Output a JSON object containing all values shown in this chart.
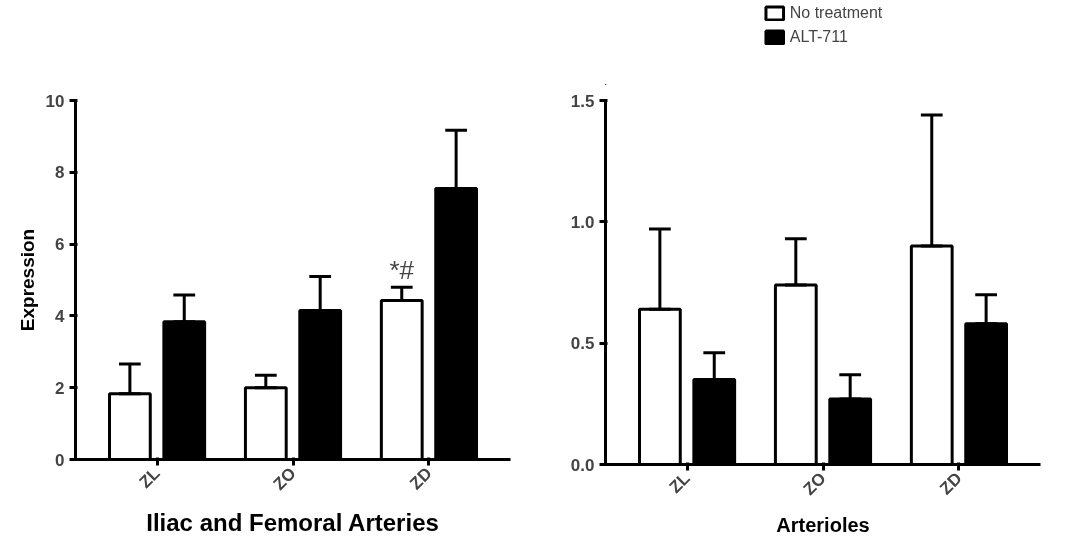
{
  "chart_data": [
    {
      "type": "bar",
      "xlabel": "Iliac and Femoral Arteries",
      "ylabel": "Expression",
      "categories": [
        "ZL",
        "ZO",
        "ZD"
      ],
      "ylim": [
        0,
        10
      ],
      "yticks": [
        0,
        2,
        4,
        6,
        8,
        10
      ],
      "grid": false,
      "legend": false,
      "series": [
        {
          "color": "#ffffff",
          "values": [
            1.83,
            2.0,
            4.43
          ],
          "errors": [
            [
              1.83,
              2.66
            ],
            [
              2.0,
              2.35
            ],
            [
              4.43,
              4.8
            ]
          ]
        },
        {
          "color": "#000000",
          "values": [
            3.84,
            4.15,
            7.55
          ],
          "errors": [
            [
              3.84,
              4.58
            ],
            [
              4.15,
              5.1
            ],
            [
              7.55,
              9.17
            ]
          ]
        }
      ],
      "annotations": [
        "*#"
      ]
    },
    {
      "type": "bar",
      "xlabel": "Arterioles",
      "categories": [
        "ZL",
        "ZO",
        "ZD"
      ],
      "ylim": [
        0,
        1.5
      ],
      "yticks": [
        {
          "value": 0,
          "label": "0.0"
        },
        0.5,
        {
          "value": 1,
          "label": "1.0"
        },
        1.5
      ],
      "grid": false,
      "legend": "top",
      "series": [
        {
          "name": "No treatment",
          "color": "#ffffff",
          "values": [
            0.64,
            0.74,
            0.9
          ],
          "errors": [
            [
              0.64,
              0.97
            ],
            [
              0.74,
              0.93
            ],
            [
              0.9,
              1.44
            ]
          ]
        },
        {
          "name": "ALT-711",
          "color": "#000000",
          "values": [
            0.35,
            0.27,
            0.58
          ],
          "errors": [
            [
              0.35,
              0.46
            ],
            [
              0.27,
              0.37
            ],
            [
              0.58,
              0.7
            ]
          ]
        }
      ]
    }
  ]
}
